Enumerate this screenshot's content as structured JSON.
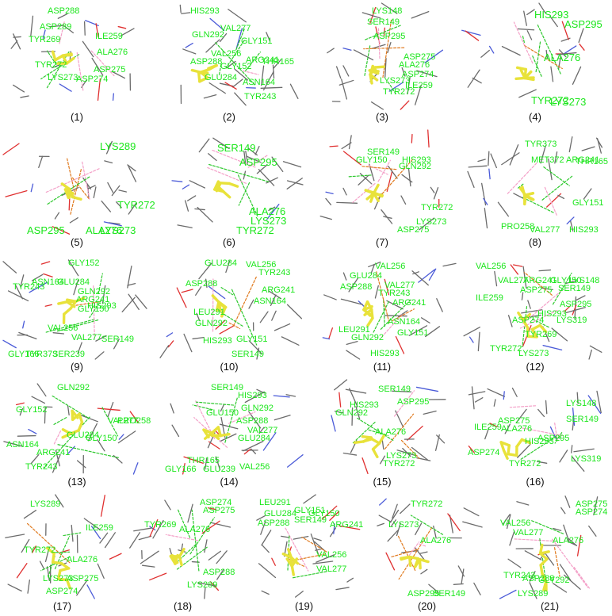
{
  "panels": [
    {
      "label": "(1)",
      "residues": [
        "ASP288",
        "ASP289",
        "ILE259",
        "TYR269",
        "ALA276",
        "TYR272",
        "ASP275",
        "LYS273",
        "ASP274"
      ]
    },
    {
      "label": "(2)",
      "residues": [
        "HIS293",
        "GLN292",
        "VAL277",
        "GLY151",
        "ASP288",
        "VAL256",
        "ARG241",
        "THR165",
        "GLY152",
        "GLU284",
        "ASN164",
        "TYR243"
      ]
    },
    {
      "label": "(3)",
      "residues": [
        "LYS148",
        "SER149",
        "ASP295",
        "ASP275",
        "ALA276",
        "ASP274",
        "LYS273",
        "ILE259",
        "TYR272"
      ]
    },
    {
      "label": "(4)",
      "residues": [
        "HIS293",
        "ASP295",
        "ALA276",
        "TYR272",
        "LYS273"
      ]
    },
    {
      "label": "(5)",
      "residues": [
        "LYS289",
        "TYR272",
        "ASP295",
        "ALA276",
        "LYS273"
      ]
    },
    {
      "label": "(6)",
      "residues": [
        "SER149",
        "ASP295",
        "ALA276",
        "LYS273",
        "TYR272"
      ]
    },
    {
      "label": "(7)",
      "residues": [
        "SER149",
        "GLY150",
        "HIS293",
        "GLN292",
        "TYR272",
        "LYS273",
        "ASP275"
      ]
    },
    {
      "label": "(8)",
      "residues": [
        "TYR373",
        "MET372",
        "ARG241",
        "THR165",
        "GLY151",
        "PRO258",
        "VAL277",
        "HIS293"
      ]
    },
    {
      "label": "(9)",
      "residues": [
        "GLY152",
        "TYR243",
        "ASN164",
        "GLU284",
        "GLN292",
        "ARG241",
        "GLY150",
        "HIS293",
        "VAL256",
        "VAL277",
        "SER149",
        "GLY166",
        "SER239",
        "TYR373"
      ]
    },
    {
      "label": "(10)",
      "residues": [
        "GLU284",
        "VAL256",
        "TYR243",
        "ASP288",
        "ARG241",
        "ASN164",
        "LEU291",
        "GLN292",
        "HIS293",
        "GLY151",
        "SER149"
      ]
    },
    {
      "label": "(11)",
      "residues": [
        "VAL256",
        "GLU284",
        "VAL277",
        "ASP288",
        "TYR243",
        "ARG241",
        "ASN164",
        "LEU291",
        "GLN292",
        "GLY151",
        "HIS293"
      ]
    },
    {
      "label": "(12)",
      "residues": [
        "VAL256",
        "VAL277",
        "ARG241",
        "GLY150",
        "LYS148",
        "SER149",
        "ILE259",
        "ASP275",
        "ASP295",
        "HIS293",
        "LYS319",
        "ASP274",
        "TYR269",
        "TYR272",
        "LYS273"
      ]
    },
    {
      "label": "(13)",
      "residues": [
        "GLN292",
        "GLY152",
        "VAL277",
        "GLU284",
        "PRO258",
        "ASN164",
        "GLY150",
        "ARG241",
        "TYR243"
      ]
    },
    {
      "label": "(14)",
      "residues": [
        "SER149",
        "HIS293",
        "GLN292",
        "GLU150",
        "ASP288",
        "VAL277",
        "GLU284",
        "THR165",
        "VAL256",
        "GLU239",
        "GLY166"
      ]
    },
    {
      "label": "(15)",
      "residues": [
        "SER149",
        "GLN292",
        "HIS293",
        "ASP295",
        "ALA276",
        "LYS273",
        "TYR272"
      ]
    },
    {
      "label": "(16)",
      "residues": [
        "LYS148",
        "ASP275",
        "SER149",
        "ILE259",
        "ALA276",
        "ASP295",
        "HIS293",
        "ASP274",
        "TYR272",
        "LYS319"
      ]
    },
    {
      "label": "(17)",
      "residues": [
        "LYS289",
        "ILE259",
        "TYR272",
        "ALA276",
        "LYS273",
        "ASP275",
        "ASP274"
      ]
    },
    {
      "label": "(18)",
      "residues": [
        "ASP274",
        "ASP275",
        "TYR269",
        "ALA276",
        "ASP288",
        "LYS289"
      ]
    },
    {
      "label": "(19)",
      "residues": [
        "LEU291",
        "GLU284",
        "GLY151",
        "GLY150",
        "ASP288",
        "SER149",
        "ARG241",
        "VAL256",
        "VAL277"
      ]
    },
    {
      "label": "(20)",
      "residues": [
        "TYR272",
        "LYS273",
        "ALA276",
        "ASP295",
        "SER149"
      ]
    },
    {
      "label": "(21)",
      "residues": [
        "VAL256",
        "VAL277",
        "ASP275",
        "ASP274",
        "ALA276",
        "TYR243",
        "ASP288",
        "GLY292",
        "LYS289"
      ]
    }
  ],
  "colors": {
    "residue_label": "#1be61b",
    "ligand": "#e8e23a",
    "backbone": "#6b6b6b",
    "h_bond": "#2ec92e",
    "hydrophobic": "#f4a0c8",
    "salt_bridge": "#e07a1f",
    "oxygen": "#e03030",
    "nitrogen": "#4b5bd8"
  }
}
